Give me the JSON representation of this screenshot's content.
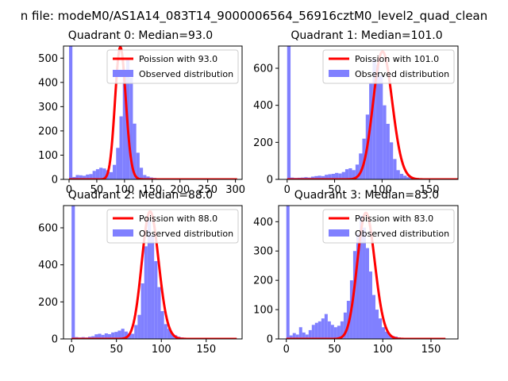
{
  "suptitle": "n file: modeM0/AS1A14_083T14_9000006564_56916cztM0_level2_quad_clean",
  "colors": {
    "hist": "#8080ff",
    "poisson": "#ff0000",
    "axis": "#000000",
    "background": "#ffffff"
  },
  "chart_data": [
    {
      "type": "bar",
      "title": "Quadrant 0: Median=93.0",
      "median": 93.0,
      "xlim": [
        -10,
        312
      ],
      "ylim": [
        0,
        550
      ],
      "xticks": [
        0,
        50,
        100,
        150,
        200,
        250,
        300
      ],
      "yticks": [
        0,
        100,
        200,
        300,
        400,
        500
      ],
      "legend": [
        "Poission with 93.0",
        "Observed distribution"
      ],
      "legend_position": "upper right",
      "hist": {
        "bin_start": 0,
        "bin_width": 6.06,
        "counts": [
          550,
          10,
          18,
          17,
          15,
          20,
          22,
          35,
          42,
          48,
          45,
          38,
          30,
          60,
          130,
          260,
          440,
          500,
          420,
          230,
          110,
          48,
          18,
          12,
          8,
          6,
          4,
          3,
          2,
          2,
          1,
          1,
          1,
          1,
          1,
          0,
          0,
          0,
          0,
          0,
          0,
          0,
          0,
          0,
          0,
          0,
          0,
          0,
          0,
          0
        ]
      },
      "poisson_mean": 93.0,
      "poisson_scale": 545
    },
    {
      "type": "bar",
      "title": "Quadrant 1: Median=101.0",
      "median": 101.0,
      "xlim": [
        -9,
        180
      ],
      "ylim": [
        0,
        720
      ],
      "xticks": [
        0,
        50,
        100,
        150
      ],
      "yticks": [
        0,
        200,
        400,
        600
      ],
      "legend": [
        "Poission with 101.0",
        "Observed distribution"
      ],
      "legend_position": "upper right",
      "hist": {
        "bin_start": 0,
        "bin_width": 3.6,
        "counts": [
          720,
          10,
          8,
          9,
          10,
          12,
          10,
          15,
          18,
          20,
          18,
          25,
          28,
          30,
          35,
          32,
          40,
          55,
          60,
          50,
          80,
          140,
          220,
          350,
          520,
          650,
          620,
          560,
          400,
          300,
          200,
          110,
          50,
          30,
          20,
          12,
          8,
          5,
          3,
          2,
          1,
          0,
          0,
          0,
          0,
          0,
          0,
          0,
          0,
          0
        ]
      },
      "poisson_mean": 101.0,
      "poisson_scale": 690
    },
    {
      "type": "bar",
      "title": "Quadrant 2: Median=88.0",
      "median": 88.0,
      "xlim": [
        -9,
        190
      ],
      "ylim": [
        0,
        720
      ],
      "xticks": [
        0,
        50,
        100,
        150
      ],
      "yticks": [
        0,
        200,
        400,
        600
      ],
      "legend": [
        "Poission with 88.0",
        "Observed distribution"
      ],
      "legend_position": "upper right",
      "hist": {
        "bin_start": 0,
        "bin_width": 3.68,
        "counts": [
          720,
          10,
          8,
          10,
          8,
          12,
          15,
          25,
          28,
          22,
          30,
          26,
          35,
          38,
          45,
          55,
          40,
          30,
          28,
          75,
          130,
          300,
          500,
          640,
          560,
          420,
          280,
          150,
          80,
          55,
          30,
          20,
          12,
          8,
          5,
          3,
          2,
          1,
          1,
          0,
          0,
          0,
          0,
          0,
          0,
          0,
          0,
          0,
          0,
          0
        ]
      },
      "poisson_mean": 88.0,
      "poisson_scale": 688
    },
    {
      "type": "bar",
      "title": "Quadrant 3: Median=83.0",
      "median": 83.0,
      "xlim": [
        -8,
        178
      ],
      "ylim": [
        0,
        455
      ],
      "xticks": [
        0,
        50,
        100,
        150
      ],
      "yticks": [
        0,
        100,
        200,
        300,
        400
      ],
      "legend": [
        "Poission with 83.0",
        "Observed distribution"
      ],
      "legend_position": "upper right",
      "hist": {
        "bin_start": 0,
        "bin_width": 3.3,
        "counts": [
          455,
          12,
          20,
          15,
          40,
          22,
          15,
          30,
          48,
          55,
          60,
          70,
          85,
          60,
          48,
          40,
          45,
          60,
          90,
          130,
          200,
          300,
          360,
          420,
          380,
          310,
          230,
          150,
          100,
          70,
          40,
          25,
          15,
          10,
          8,
          5,
          3,
          2,
          1,
          1,
          0,
          0,
          0,
          0,
          0,
          0,
          0,
          0,
          0,
          0
        ]
      },
      "poisson_mean": 83.0,
      "poisson_scale": 430
    }
  ]
}
